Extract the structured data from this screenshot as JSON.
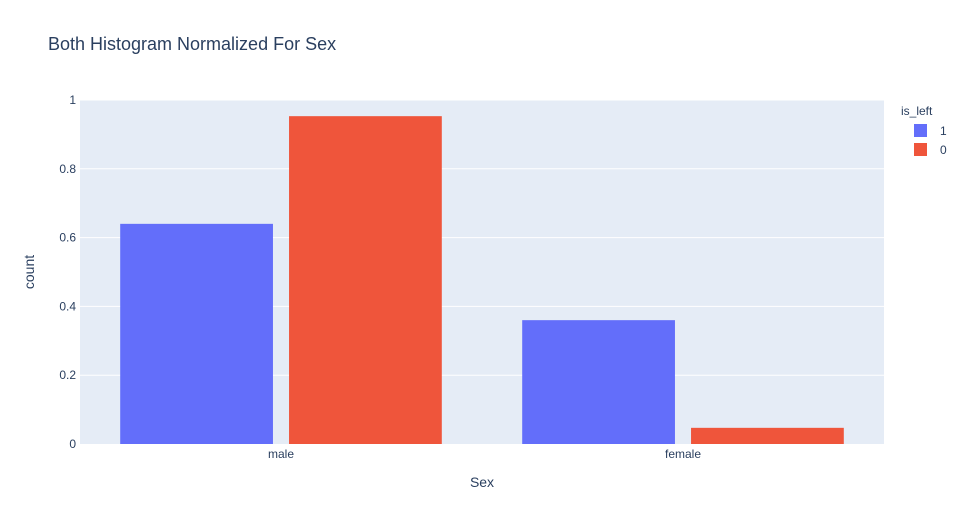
{
  "chart_data": {
    "type": "bar",
    "title": "Both Histogram Normalized For Sex",
    "xlabel": "Sex",
    "ylabel": "count",
    "categories": [
      "male",
      "female"
    ],
    "series": [
      {
        "name": "1",
        "values": [
          0.64,
          0.36
        ],
        "color": "#636efa"
      },
      {
        "name": "0",
        "values": [
          0.953,
          0.047
        ],
        "color": "#EF553B"
      }
    ],
    "ylim": [
      0,
      1
    ],
    "yticks": [
      "0",
      "0.2",
      "0.4",
      "0.6",
      "0.8",
      "1"
    ],
    "legend_title": "is_left",
    "legend_placement": "top-right",
    "grid": true,
    "plot_bgcolor": "#E5ECF6"
  }
}
